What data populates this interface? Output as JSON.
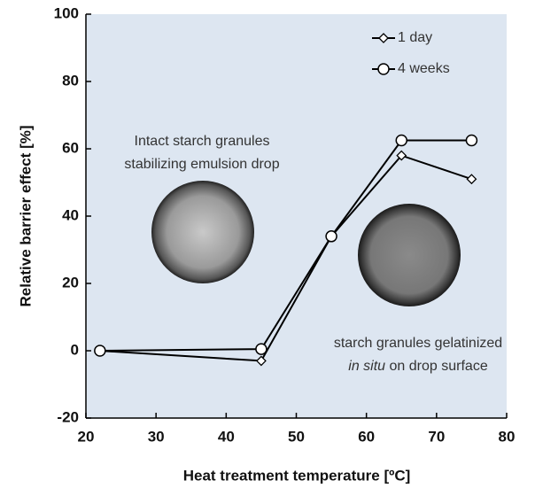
{
  "chart_data": {
    "type": "line",
    "x_label": "Heat treatment temperature [ºC]",
    "y_label": "Relative barrier effect [%]",
    "x": [
      22,
      45,
      55,
      65,
      75
    ],
    "series": [
      {
        "name": "1 day",
        "color": "#000000",
        "marker": "diamond",
        "values": [
          0,
          -3,
          34,
          58,
          51
        ]
      },
      {
        "name": "4 weeks",
        "color": "#000000",
        "marker": "circle",
        "values": [
          0,
          0.5,
          34,
          62.5,
          62.5
        ]
      }
    ],
    "xlim": [
      20,
      80
    ],
    "xticks": [
      20,
      30,
      40,
      50,
      60,
      70,
      80
    ],
    "ylim": [
      -20,
      100
    ],
    "yticks": [
      -20,
      0,
      20,
      40,
      60,
      80,
      100
    ],
    "legend": "top-right",
    "annotations": [
      {
        "lines": [
          "Intact starch granules",
          "stabilizing emulsion drop"
        ]
      },
      {
        "lines": [
          "starch granules gelatinized"
        ],
        "italic": "in situ",
        "rest": "on drop surface"
      }
    ]
  }
}
